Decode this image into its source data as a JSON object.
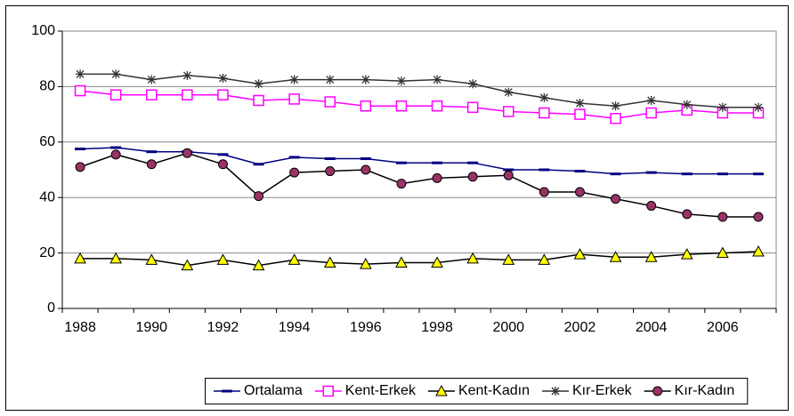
{
  "chart_data": {
    "type": "line",
    "categories": [
      "1988",
      null,
      "1990",
      null,
      "1992",
      null,
      "1994",
      null,
      "1996",
      null,
      "1998",
      null,
      "2000",
      null,
      "2002",
      null,
      "2004",
      null,
      "2006",
      null
    ],
    "series": [
      {
        "name": "Ortalama",
        "color": "#000080",
        "marker": "dash",
        "marker_color": "#000080",
        "values": [
          57.5,
          58,
          56.5,
          56.5,
          55.5,
          52,
          54.5,
          54,
          54,
          52.5,
          52.5,
          52.5,
          50,
          50,
          49.5,
          48.5,
          49,
          48.5,
          48.5,
          48.5
        ]
      },
      {
        "name": "Kent-Erkek",
        "color": "#ff00ff",
        "marker": "square",
        "marker_color": "#ffffff",
        "values": [
          78.5,
          77,
          77,
          77,
          77,
          75,
          75.5,
          74.5,
          73,
          73,
          73,
          72.5,
          71,
          70.5,
          70,
          68.5,
          70.5,
          71.5,
          70.5,
          70.5
        ]
      },
      {
        "name": "Kent-Kadın",
        "color": "#000000",
        "marker": "triangle",
        "marker_color": "#ffff00",
        "values": [
          18,
          18,
          17.5,
          15.5,
          17.5,
          15.5,
          17.5,
          16.5,
          16,
          16.5,
          16.5,
          18,
          17.5,
          17.5,
          19.5,
          18.5,
          18.5,
          19.5,
          20,
          20.5
        ]
      },
      {
        "name": "Kır-Erkek",
        "color": "#333333",
        "marker": "star",
        "marker_color": "#333333",
        "values": [
          84.5,
          84.5,
          82.5,
          84,
          83,
          81,
          82.5,
          82.5,
          82.5,
          82,
          82.5,
          81,
          78,
          76,
          74,
          73,
          75,
          73.5,
          72.5,
          72.5
        ]
      },
      {
        "name": "Kır-Kadın",
        "color": "#000000",
        "marker": "circle",
        "marker_color": "#993366",
        "values": [
          51,
          55.5,
          52,
          56,
          52,
          40.5,
          49,
          49.5,
          50,
          45,
          47,
          47.5,
          48,
          42,
          42,
          39.5,
          37,
          34,
          33,
          33
        ]
      }
    ],
    "ylim": [
      0,
      100
    ],
    "yticks": [
      0,
      20,
      40,
      60,
      80,
      100
    ],
    "grid": true,
    "legend": "bottom"
  }
}
